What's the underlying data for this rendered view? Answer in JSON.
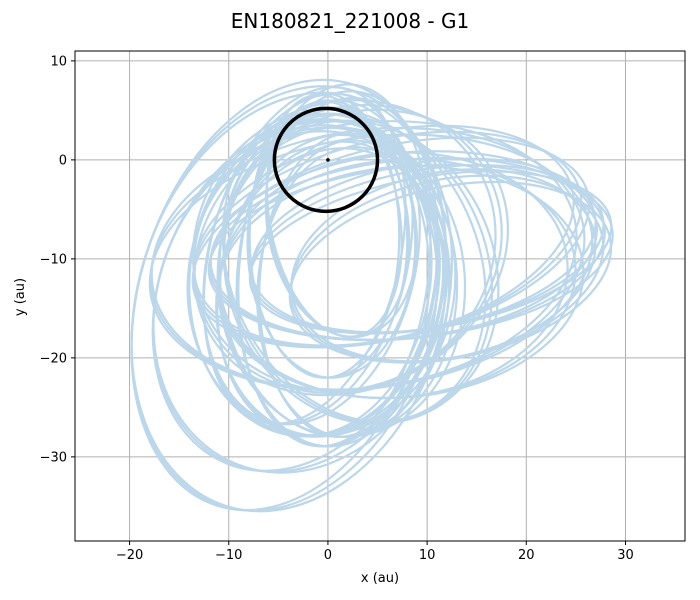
{
  "chart_data": {
    "type": "line",
    "title": "EN180821_221008 - G1",
    "xlabel": "x (au)",
    "ylabel": "y (au)",
    "xlim": [
      -25.5,
      36
    ],
    "ylim": [
      -38.5,
      11
    ],
    "x_ticks": [
      -20,
      -10,
      0,
      10,
      20,
      30
    ],
    "y_ticks": [
      10,
      0,
      -10,
      -20,
      -30
    ],
    "grid": true,
    "colors": {
      "trajectory": "#bcd6ea",
      "orbit": "#000000",
      "star": "#000000",
      "grid": "#b0b0b0"
    },
    "series": [
      {
        "kind": "reference-orbit",
        "center": [
          -0.2,
          0.0
        ],
        "radius_au": 5.2
      },
      {
        "kind": "star",
        "point": [
          0,
          0
        ]
      },
      {
        "kind": "test-particle-trajectory",
        "loops_approx": [
          {
            "cx": 4,
            "cy": -10,
            "rx": 22,
            "ry": 13,
            "rot": -8
          },
          {
            "cx": 6,
            "cy": -8,
            "rx": 20,
            "ry": 10,
            "rot": -14
          },
          {
            "cx": 8,
            "cy": -9,
            "rx": 20,
            "ry": 9,
            "rot": -6
          },
          {
            "cx": 10,
            "cy": -9,
            "rx": 18,
            "ry": 8,
            "rot": -10
          },
          {
            "cx": 1,
            "cy": -11,
            "rx": 10,
            "ry": 18,
            "rot": 6
          },
          {
            "cx": -2,
            "cy": -10,
            "rx": 10,
            "ry": 17,
            "rot": 14
          },
          {
            "cx": 0,
            "cy": -8,
            "rx": 8,
            "ry": 14,
            "rot": 0
          },
          {
            "cx": 1,
            "cy": -12,
            "rx": 12,
            "ry": 16,
            "rot": -4
          },
          {
            "cx": -3,
            "cy": -14,
            "rx": 14,
            "ry": 18,
            "rot": 22
          },
          {
            "cx": -4,
            "cy": -14,
            "rx": 15,
            "ry": 22,
            "rot": 18
          },
          {
            "cx": 3,
            "cy": -11,
            "rx": 13,
            "ry": 16,
            "rot": -24
          },
          {
            "cx": 2,
            "cy": -9,
            "rx": 16,
            "ry": 14,
            "rot": -30
          },
          {
            "cx": 0,
            "cy": -13,
            "rx": 11,
            "ry": 15,
            "rot": 12
          },
          {
            "cx": 12,
            "cy": -11,
            "rx": 16,
            "ry": 9,
            "rot": -12
          },
          {
            "cx": 7,
            "cy": -12,
            "rx": 18,
            "ry": 12,
            "rot": -5
          },
          {
            "cx": 2,
            "cy": -13,
            "rx": 9,
            "ry": 15,
            "rot": 3
          },
          {
            "cx": 1,
            "cy": -6,
            "rx": 7,
            "ry": 12,
            "rot": -10
          },
          {
            "cx": -1,
            "cy": -12,
            "rx": 13,
            "ry": 16,
            "rot": 8
          }
        ]
      }
    ]
  }
}
